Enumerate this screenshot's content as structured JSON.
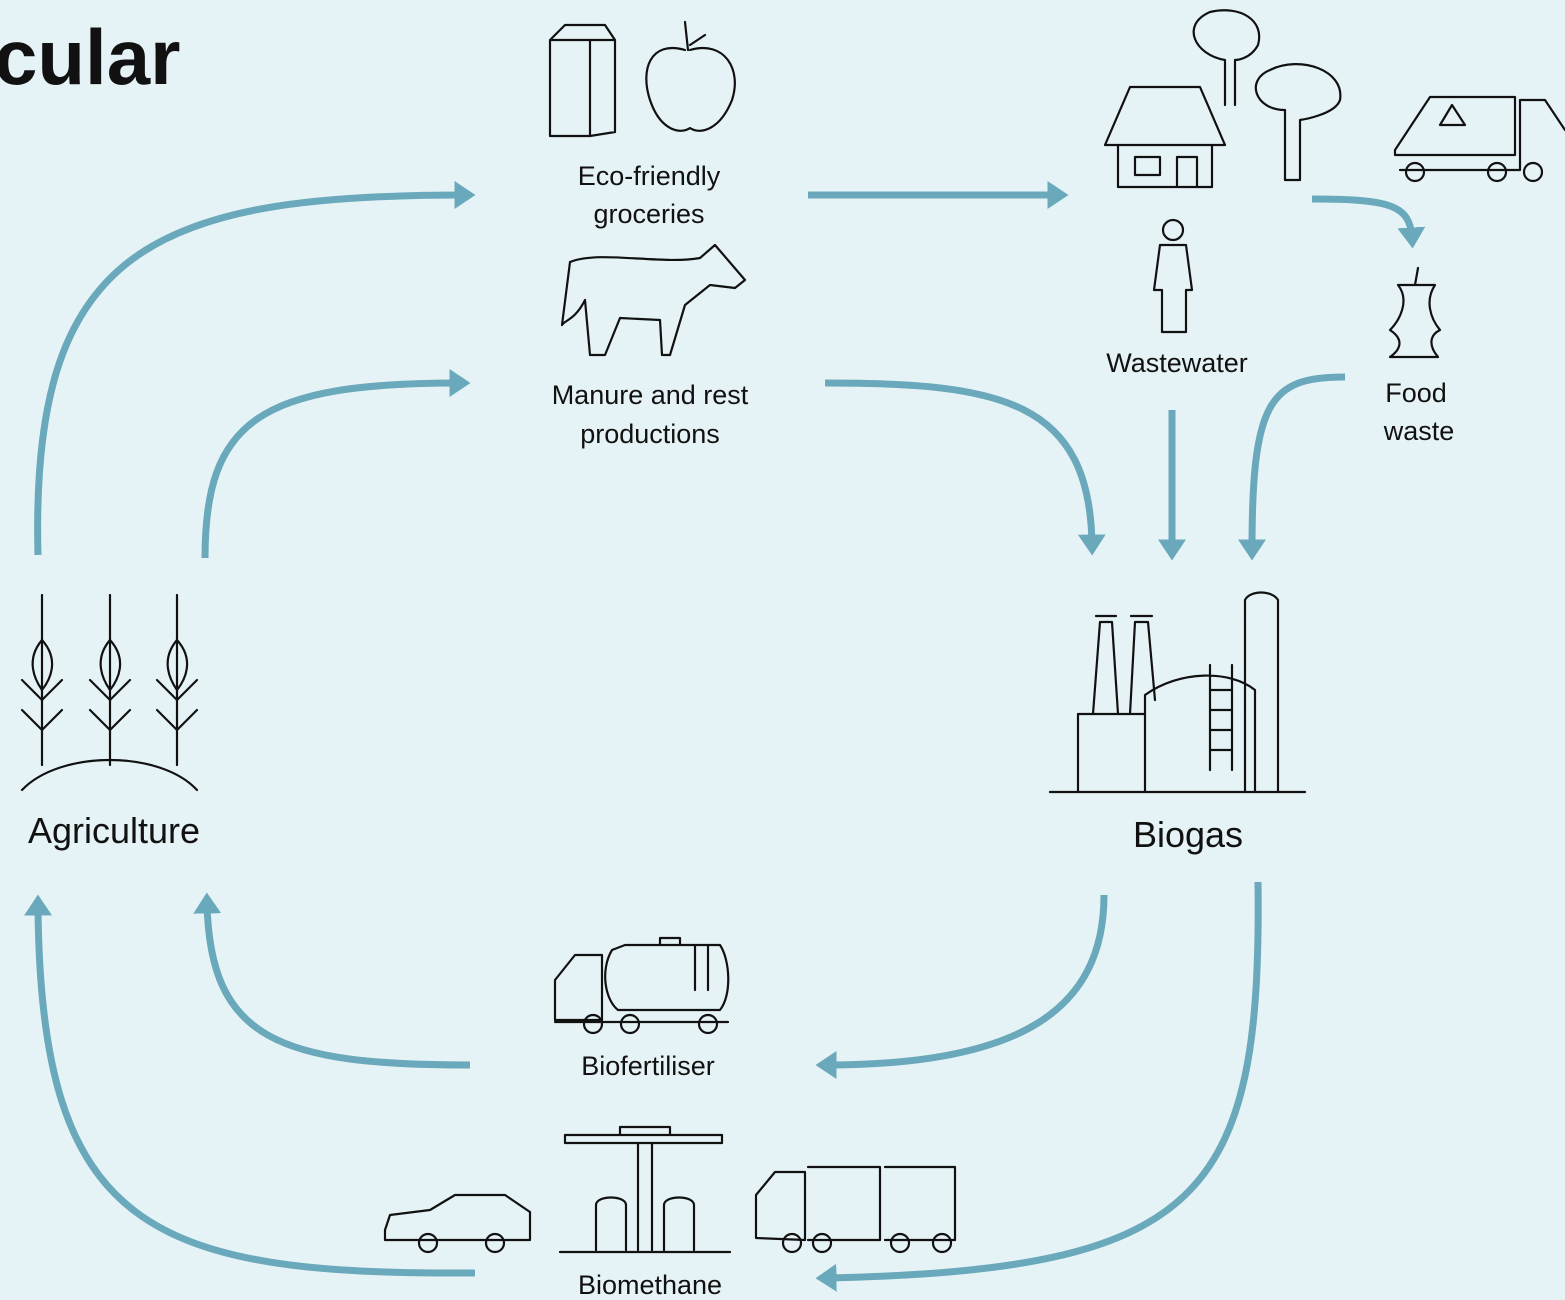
{
  "header": {
    "title": "cular"
  },
  "nodes": [
    {
      "label": [
        "Eco-friendly",
        "groceries"
      ]
    },
    {
      "label": [
        "Manure and rest",
        "productions"
      ]
    },
    {
      "label": [
        "Wastewater"
      ]
    },
    {
      "label": [
        "Food",
        "waste"
      ]
    },
    {
      "label": [
        "Agriculture"
      ]
    },
    {
      "label": [
        "Biogas"
      ]
    },
    {
      "label": [
        "Biofertiliser"
      ]
    },
    {
      "label": [
        "Biomethane"
      ]
    }
  ]
}
